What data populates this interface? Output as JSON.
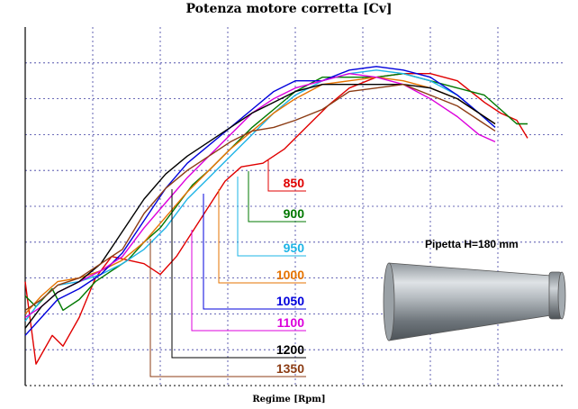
{
  "title": "Potenza motore corretta [Cv]",
  "chart_data": {
    "type": "line",
    "title": "Potenza motore corretta [Cv]",
    "xlabel": "Regime [Rpm]",
    "ylabel": "",
    "grid": true,
    "legend": "callout labels with leader lines, right side",
    "series": [
      {
        "name": "850",
        "color": "#e00000",
        "points": [
          [
            0.0,
            0.29
          ],
          [
            0.02,
            0.06
          ],
          [
            0.05,
            0.14
          ],
          [
            0.07,
            0.11
          ],
          [
            0.1,
            0.19
          ],
          [
            0.13,
            0.3
          ],
          [
            0.16,
            0.36
          ],
          [
            0.19,
            0.35
          ],
          [
            0.22,
            0.34
          ],
          [
            0.25,
            0.31
          ],
          [
            0.28,
            0.36
          ],
          [
            0.31,
            0.43
          ],
          [
            0.34,
            0.5
          ],
          [
            0.37,
            0.57
          ],
          [
            0.4,
            0.61
          ],
          [
            0.44,
            0.62
          ],
          [
            0.48,
            0.66
          ],
          [
            0.52,
            0.72
          ],
          [
            0.56,
            0.78
          ],
          [
            0.6,
            0.83
          ],
          [
            0.65,
            0.86
          ],
          [
            0.7,
            0.87
          ],
          [
            0.75,
            0.87
          ],
          [
            0.8,
            0.85
          ],
          [
            0.85,
            0.79
          ],
          [
            0.88,
            0.76
          ],
          [
            0.91,
            0.74
          ],
          [
            0.93,
            0.69
          ]
        ]
      },
      {
        "name": "900",
        "color": "#007800",
        "points": [
          [
            0.0,
            0.25
          ],
          [
            0.02,
            0.22
          ],
          [
            0.05,
            0.27
          ],
          [
            0.07,
            0.21
          ],
          [
            0.1,
            0.24
          ],
          [
            0.13,
            0.29
          ],
          [
            0.16,
            0.32
          ],
          [
            0.19,
            0.35
          ],
          [
            0.22,
            0.4
          ],
          [
            0.25,
            0.44
          ],
          [
            0.28,
            0.5
          ],
          [
            0.31,
            0.56
          ],
          [
            0.34,
            0.6
          ],
          [
            0.38,
            0.66
          ],
          [
            0.42,
            0.72
          ],
          [
            0.46,
            0.77
          ],
          [
            0.5,
            0.82
          ],
          [
            0.55,
            0.86
          ],
          [
            0.6,
            0.86
          ],
          [
            0.65,
            0.86
          ],
          [
            0.7,
            0.87
          ],
          [
            0.75,
            0.85
          ],
          [
            0.8,
            0.83
          ],
          [
            0.85,
            0.81
          ],
          [
            0.88,
            0.77
          ],
          [
            0.91,
            0.73
          ],
          [
            0.93,
            0.73
          ]
        ]
      },
      {
        "name": "950",
        "color": "#1eb4e6",
        "points": [
          [
            0.0,
            0.18
          ],
          [
            0.03,
            0.24
          ],
          [
            0.06,
            0.28
          ],
          [
            0.1,
            0.29
          ],
          [
            0.14,
            0.31
          ],
          [
            0.18,
            0.34
          ],
          [
            0.22,
            0.38
          ],
          [
            0.26,
            0.44
          ],
          [
            0.3,
            0.52
          ],
          [
            0.34,
            0.58
          ],
          [
            0.38,
            0.64
          ],
          [
            0.42,
            0.7
          ],
          [
            0.46,
            0.76
          ],
          [
            0.5,
            0.81
          ],
          [
            0.55,
            0.85
          ],
          [
            0.6,
            0.87
          ],
          [
            0.65,
            0.88
          ],
          [
            0.7,
            0.87
          ],
          [
            0.75,
            0.85
          ],
          [
            0.8,
            0.81
          ],
          [
            0.84,
            0.76
          ],
          [
            0.87,
            0.72
          ]
        ]
      },
      {
        "name": "1000",
        "color": "#e67300",
        "points": [
          [
            0.0,
            0.2
          ],
          [
            0.03,
            0.25
          ],
          [
            0.06,
            0.29
          ],
          [
            0.1,
            0.3
          ],
          [
            0.14,
            0.32
          ],
          [
            0.18,
            0.35
          ],
          [
            0.22,
            0.4
          ],
          [
            0.26,
            0.47
          ],
          [
            0.3,
            0.54
          ],
          [
            0.34,
            0.6
          ],
          [
            0.38,
            0.66
          ],
          [
            0.42,
            0.71
          ],
          [
            0.46,
            0.76
          ],
          [
            0.5,
            0.8
          ],
          [
            0.55,
            0.84
          ],
          [
            0.6,
            0.85
          ],
          [
            0.65,
            0.86
          ],
          [
            0.7,
            0.85
          ],
          [
            0.75,
            0.83
          ],
          [
            0.8,
            0.8
          ],
          [
            0.84,
            0.76
          ],
          [
            0.87,
            0.73
          ]
        ]
      },
      {
        "name": "1050",
        "color": "#0000dc",
        "points": [
          [
            0.0,
            0.14
          ],
          [
            0.03,
            0.19
          ],
          [
            0.06,
            0.24
          ],
          [
            0.1,
            0.27
          ],
          [
            0.14,
            0.31
          ],
          [
            0.18,
            0.37
          ],
          [
            0.22,
            0.46
          ],
          [
            0.26,
            0.55
          ],
          [
            0.3,
            0.62
          ],
          [
            0.34,
            0.67
          ],
          [
            0.38,
            0.72
          ],
          [
            0.42,
            0.77
          ],
          [
            0.46,
            0.82
          ],
          [
            0.5,
            0.85
          ],
          [
            0.55,
            0.85
          ],
          [
            0.6,
            0.88
          ],
          [
            0.65,
            0.89
          ],
          [
            0.7,
            0.88
          ],
          [
            0.75,
            0.86
          ],
          [
            0.8,
            0.81
          ],
          [
            0.84,
            0.76
          ],
          [
            0.87,
            0.72
          ]
        ]
      },
      {
        "name": "1100",
        "color": "#dc00dc",
        "points": [
          [
            0.0,
            0.19
          ],
          [
            0.03,
            0.22
          ],
          [
            0.06,
            0.26
          ],
          [
            0.1,
            0.29
          ],
          [
            0.14,
            0.32
          ],
          [
            0.18,
            0.36
          ],
          [
            0.22,
            0.44
          ],
          [
            0.26,
            0.51
          ],
          [
            0.3,
            0.58
          ],
          [
            0.34,
            0.64
          ],
          [
            0.38,
            0.7
          ],
          [
            0.42,
            0.76
          ],
          [
            0.46,
            0.8
          ],
          [
            0.5,
            0.83
          ],
          [
            0.55,
            0.85
          ],
          [
            0.6,
            0.87
          ],
          [
            0.65,
            0.86
          ],
          [
            0.7,
            0.84
          ],
          [
            0.75,
            0.8
          ],
          [
            0.8,
            0.75
          ],
          [
            0.84,
            0.7
          ],
          [
            0.87,
            0.68
          ]
        ]
      },
      {
        "name": "1200",
        "color": "#000000",
        "points": [
          [
            0.0,
            0.16
          ],
          [
            0.03,
            0.22
          ],
          [
            0.06,
            0.26
          ],
          [
            0.1,
            0.29
          ],
          [
            0.14,
            0.34
          ],
          [
            0.18,
            0.43
          ],
          [
            0.22,
            0.52
          ],
          [
            0.26,
            0.59
          ],
          [
            0.3,
            0.64
          ],
          [
            0.34,
            0.68
          ],
          [
            0.38,
            0.72
          ],
          [
            0.42,
            0.76
          ],
          [
            0.46,
            0.79
          ],
          [
            0.5,
            0.82
          ],
          [
            0.55,
            0.84
          ],
          [
            0.6,
            0.84
          ],
          [
            0.65,
            0.84
          ],
          [
            0.7,
            0.84
          ],
          [
            0.75,
            0.83
          ],
          [
            0.8,
            0.8
          ],
          [
            0.84,
            0.76
          ],
          [
            0.87,
            0.73
          ]
        ]
      },
      {
        "name": "1350",
        "color": "#8c3c14",
        "points": [
          [
            0.0,
            0.21
          ],
          [
            0.03,
            0.24
          ],
          [
            0.06,
            0.28
          ],
          [
            0.1,
            0.3
          ],
          [
            0.14,
            0.34
          ],
          [
            0.18,
            0.38
          ],
          [
            0.22,
            0.48
          ],
          [
            0.26,
            0.55
          ],
          [
            0.3,
            0.6
          ],
          [
            0.34,
            0.64
          ],
          [
            0.38,
            0.68
          ],
          [
            0.42,
            0.71
          ],
          [
            0.46,
            0.72
          ],
          [
            0.5,
            0.74
          ],
          [
            0.55,
            0.77
          ],
          [
            0.6,
            0.82
          ],
          [
            0.65,
            0.83
          ],
          [
            0.7,
            0.84
          ],
          [
            0.75,
            0.81
          ],
          [
            0.8,
            0.78
          ],
          [
            0.84,
            0.74
          ],
          [
            0.87,
            0.71
          ]
        ]
      }
    ]
  },
  "inset": {
    "label": "Pipetta H=180 mm"
  }
}
